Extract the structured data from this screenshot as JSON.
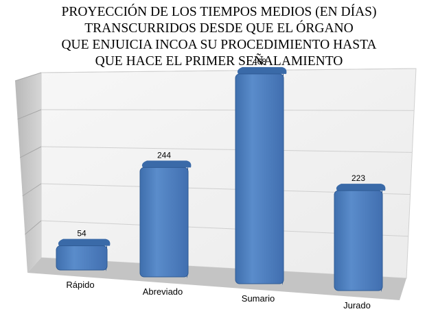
{
  "chart_data": {
    "type": "bar",
    "title_lines": [
      "PROYECCIÓN DE LOS TIEMPOS MEDIOS (EN DÍAS)",
      "TRANSCURRIDOS DESDE QUE EL ÓRGANO",
      "QUE ENJUICIA INCOA SU PROCEDIMIENTO HASTA",
      "QUE HACE EL PRIMER SEÑALAMIENTO"
    ],
    "categories": [
      "Rápido",
      "Abreviado",
      "Sumario",
      "Jurado"
    ],
    "values": [
      54,
      244,
      468,
      223
    ],
    "data_labels": [
      "54",
      "244",
      "468",
      "223"
    ],
    "ylim": [
      0,
      500
    ],
    "grid": true,
    "legend": "none",
    "colors": {
      "bar_front": "#4f81bd",
      "bar_top": "#3a6aa8",
      "bar_side": "#2d568f",
      "back_wall": "#f4f4f4",
      "side_wall": "#c8c8c8",
      "floor": "#c4c4c4",
      "grid": "#cfcfcf"
    }
  }
}
